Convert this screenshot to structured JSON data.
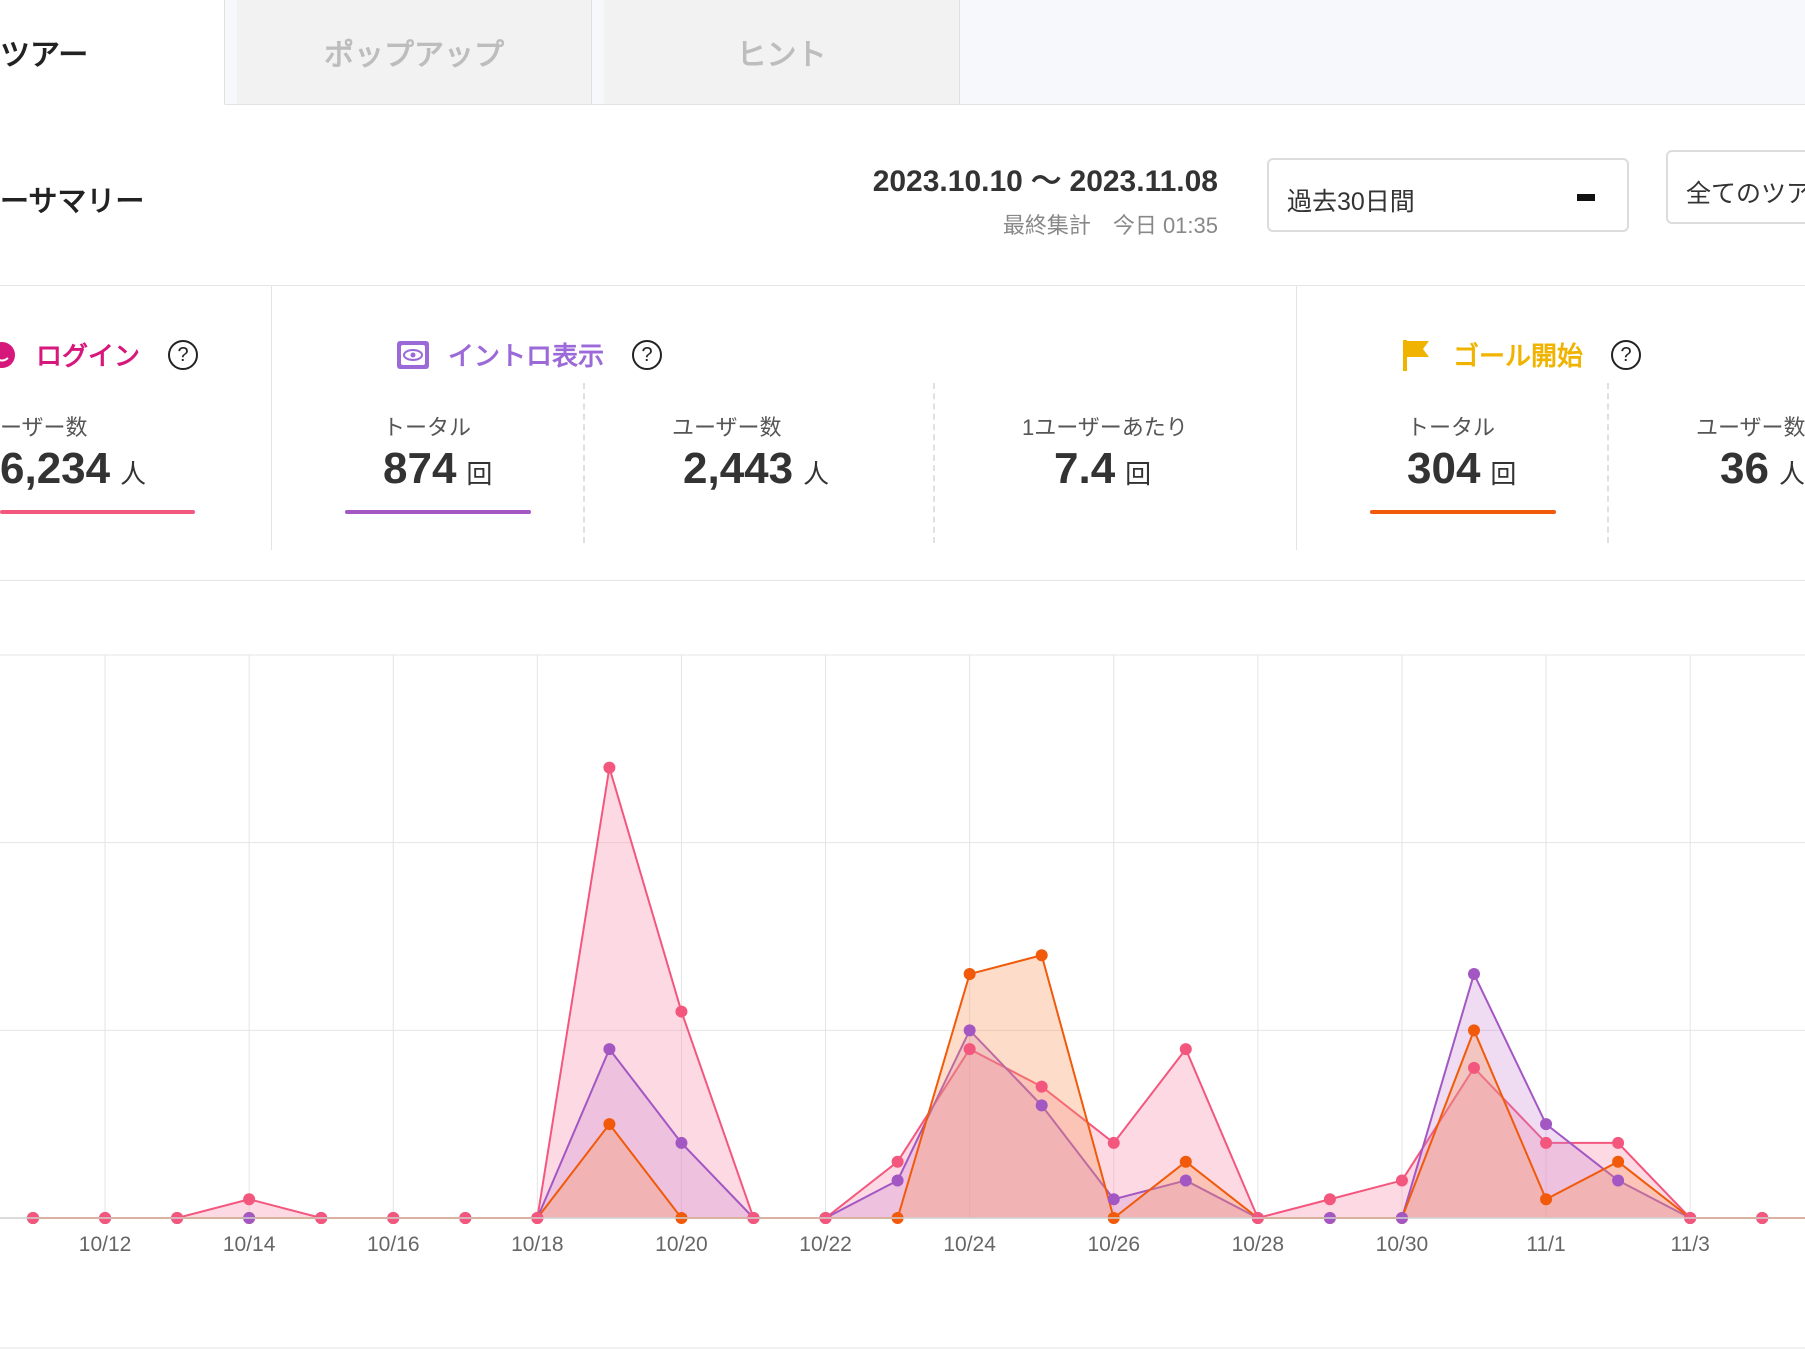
{
  "tabs": [
    {
      "label": "ツアー",
      "active": true
    },
    {
      "label": "ポップアップ",
      "active": false
    },
    {
      "label": "ヒント",
      "active": false
    }
  ],
  "header": {
    "title": "ーサマリー",
    "date_range": "2023.10.10 〜 2023.11.08",
    "last_aggregated": "最終集計　今日 01:35",
    "period_select": "過去30日間",
    "tour_select": "全てのツア"
  },
  "sections": {
    "login": {
      "title": "ログイン",
      "color": "#d6187d",
      "metrics": [
        {
          "label": "ーザー数",
          "value": "6,234",
          "unit": "人"
        }
      ]
    },
    "intro": {
      "title": "イントロ表示",
      "color": "#9b6ad8",
      "metrics": [
        {
          "label": "トータル",
          "value": "874",
          "unit": "回"
        },
        {
          "label": "ユーザー数",
          "value": "2,443",
          "unit": "人"
        },
        {
          "label": "1ユーザーあたり",
          "value": "7.4",
          "unit": "回"
        }
      ]
    },
    "goal": {
      "title": "ゴール開始",
      "color": "#f0b400",
      "metrics": [
        {
          "label": "トータル",
          "value": "304",
          "unit": "回"
        },
        {
          "label": "ユーザー数",
          "value": "36",
          "unit": "人"
        }
      ]
    }
  },
  "colors": {
    "pink": "#f3577e",
    "purple": "#a357c2",
    "orange": "#f05a0a"
  },
  "chart_data": {
    "type": "area",
    "x": [
      "10/11",
      "10/12",
      "10/13",
      "10/14",
      "10/15",
      "10/16",
      "10/17",
      "10/18",
      "10/19",
      "10/20",
      "10/21",
      "10/22",
      "10/23",
      "10/24",
      "10/25",
      "10/26",
      "10/27",
      "10/28",
      "10/29",
      "10/30",
      "10/31",
      "11/1",
      "11/2",
      "11/3",
      "11/4",
      "11/5"
    ],
    "tick_labels": [
      "10/12",
      "10/14",
      "10/16",
      "10/18",
      "10/20",
      "10/22",
      "10/24",
      "10/26",
      "10/28",
      "10/30",
      "11/1",
      "11/3"
    ],
    "series": [
      {
        "color": "#f3577e",
        "values": [
          0,
          0,
          0,
          1,
          0,
          0,
          0,
          0,
          24,
          11,
          0,
          0,
          3,
          9,
          7,
          4,
          9,
          0,
          1,
          2,
          8,
          4,
          4,
          0,
          0,
          0
        ]
      },
      {
        "color": "#a357c2",
        "values": [
          0,
          0,
          0,
          0,
          0,
          0,
          0,
          0,
          9,
          4,
          0,
          0,
          2,
          10,
          6,
          1,
          2,
          0,
          0,
          0,
          13,
          5,
          2,
          0,
          0,
          0
        ]
      },
      {
        "color": "#f05a0a",
        "values": [
          0,
          0,
          0,
          0,
          0,
          0,
          0,
          0,
          5,
          0,
          0,
          0,
          0,
          13,
          14,
          0,
          3,
          0,
          0,
          0,
          10,
          1,
          3,
          0,
          0,
          0
        ]
      }
    ],
    "ylim": [
      0,
      30
    ],
    "grid": true
  }
}
